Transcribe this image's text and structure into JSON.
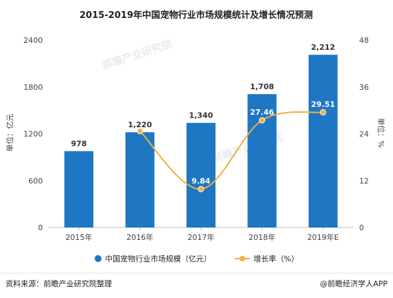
{
  "watermark": "前瞻产业研究院",
  "footer": {
    "source": "资料来源：前瞻产业研究院整理",
    "brand": "@前瞻经济学人APP"
  },
  "chart_data": {
    "type": "bar",
    "title": "2015-2019年中国宠物行业市场规模统计及增长情况预测",
    "categories": [
      "2015年",
      "2016年",
      "2017年",
      "2018年",
      "2019年E"
    ],
    "ylabel_left": "单位：亿元",
    "ylabel_right": "单位：%",
    "ylim_left": [
      0,
      2400
    ],
    "ylim_right": [
      0,
      48
    ],
    "yticks_left": [
      "0",
      "600",
      "1200",
      "1800",
      "2400"
    ],
    "yticks_right": [
      "0",
      "12",
      "24",
      "36",
      "48"
    ],
    "grid": false,
    "legend_position": "bottom",
    "series": [
      {
        "name": "中国宠物行业市场规模（亿元）",
        "type": "bar",
        "axis": "left",
        "color": "#1f77c4",
        "values": [
          978,
          1220,
          1340,
          1708,
          2212
        ],
        "labels": [
          "978",
          "1,220",
          "1,340",
          "1,708",
          "2,212"
        ]
      },
      {
        "name": "增长率（%）",
        "type": "line",
        "axis": "right",
        "color": "#f0b13a",
        "values": [
          null,
          24.7,
          9.84,
          27.46,
          29.51
        ],
        "labels": [
          "",
          "",
          "9.84",
          "27.46",
          "29.51"
        ]
      }
    ]
  }
}
